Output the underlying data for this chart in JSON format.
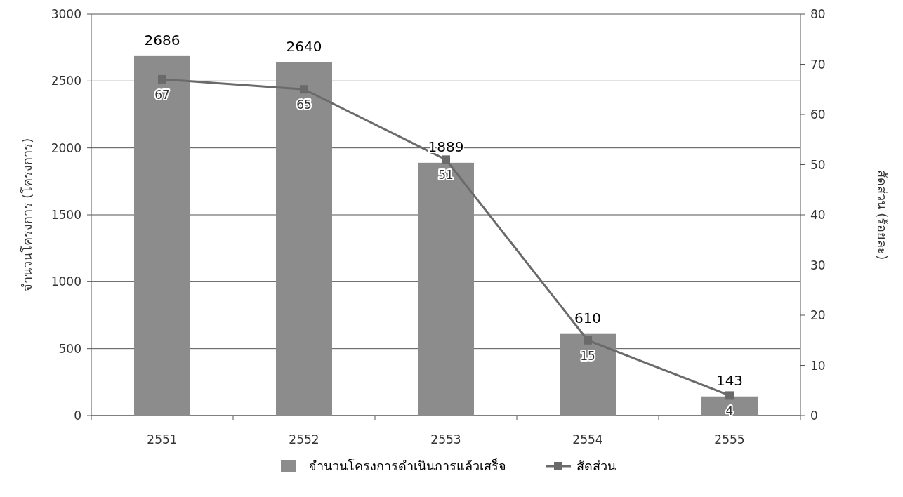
{
  "chart_data": {
    "type": "bar",
    "categories": [
      "2551",
      "2552",
      "2553",
      "2554",
      "2555"
    ],
    "series": [
      {
        "name": "จำนวนโครงการดำเนินการแล้วเสร็จ",
        "color": "#8c8c8c",
        "values": [
          2686,
          2640,
          1889,
          610,
          143
        ]
      },
      {
        "name": "สัดส่วน",
        "type": "line",
        "axis": "y2",
        "color": "#6a6a6a",
        "values": [
          67,
          65,
          51,
          15,
          4
        ]
      }
    ],
    "ylabel": "จำนวนโครงการ (โครงการ)",
    "y2label": "สัดส่วน (ร้อยละ)",
    "ylim": [
      0,
      3000
    ],
    "yticks": [
      0,
      500,
      1000,
      1500,
      2000,
      2500,
      3000
    ],
    "y2lim": [
      0,
      80
    ],
    "y2ticks": [
      0,
      10,
      20,
      30,
      40,
      50,
      60,
      70,
      80
    ],
    "grid": "y",
    "legend": "bottom",
    "marker": "square",
    "data_labels": true
  }
}
